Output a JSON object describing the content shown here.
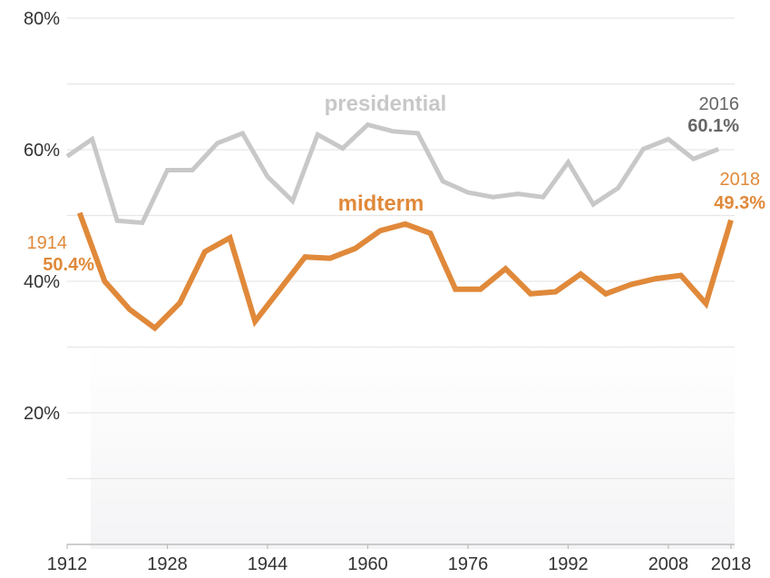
{
  "chart_data": {
    "type": "line",
    "title": "",
    "xlabel": "",
    "ylabel": "",
    "xlim": [
      1912,
      2018
    ],
    "ylim": [
      0,
      80
    ],
    "grid": true,
    "x_ticks": [
      "1912",
      "1928",
      "1944",
      "1960",
      "1976",
      "1992",
      "2008",
      "2018"
    ],
    "y_ticks": [
      "80%",
      "60%",
      "40%",
      "20%"
    ],
    "series": [
      {
        "name": "presidential",
        "color": "#c8c8c8",
        "x": [
          1912,
          1916,
          1920,
          1924,
          1928,
          1932,
          1936,
          1940,
          1944,
          1948,
          1952,
          1956,
          1960,
          1964,
          1968,
          1972,
          1976,
          1980,
          1984,
          1988,
          1992,
          1996,
          2000,
          2004,
          2008,
          2012,
          2016
        ],
        "y": [
          59.0,
          61.6,
          49.2,
          48.9,
          56.9,
          56.9,
          61.0,
          62.5,
          55.9,
          52.2,
          62.3,
          60.2,
          63.8,
          62.8,
          62.5,
          55.2,
          53.5,
          52.8,
          53.3,
          52.8,
          58.1,
          51.7,
          54.2,
          60.1,
          61.6,
          58.6,
          60.1
        ]
      },
      {
        "name": "midterm",
        "color": "#e0893a",
        "x": [
          1914,
          1918,
          1922,
          1926,
          1930,
          1934,
          1938,
          1942,
          1946,
          1950,
          1954,
          1958,
          1962,
          1966,
          1970,
          1974,
          1978,
          1982,
          1986,
          1990,
          1994,
          1998,
          2002,
          2006,
          2010,
          2014,
          2018
        ],
        "y": [
          50.4,
          40.0,
          35.7,
          32.9,
          36.7,
          44.5,
          46.6,
          33.9,
          38.8,
          43.7,
          43.5,
          45.0,
          47.7,
          48.7,
          47.3,
          38.8,
          38.8,
          41.9,
          38.1,
          38.4,
          41.1,
          38.1,
          39.5,
          40.4,
          40.9,
          36.6,
          49.3
        ]
      }
    ],
    "annotations": [
      {
        "year": "1914",
        "value": "50.4%",
        "color": "#e0893a"
      },
      {
        "year": "2016",
        "value": "60.1%",
        "color": "#666666"
      },
      {
        "year": "2018",
        "value": "49.3%",
        "color": "#e0893a"
      }
    ]
  }
}
